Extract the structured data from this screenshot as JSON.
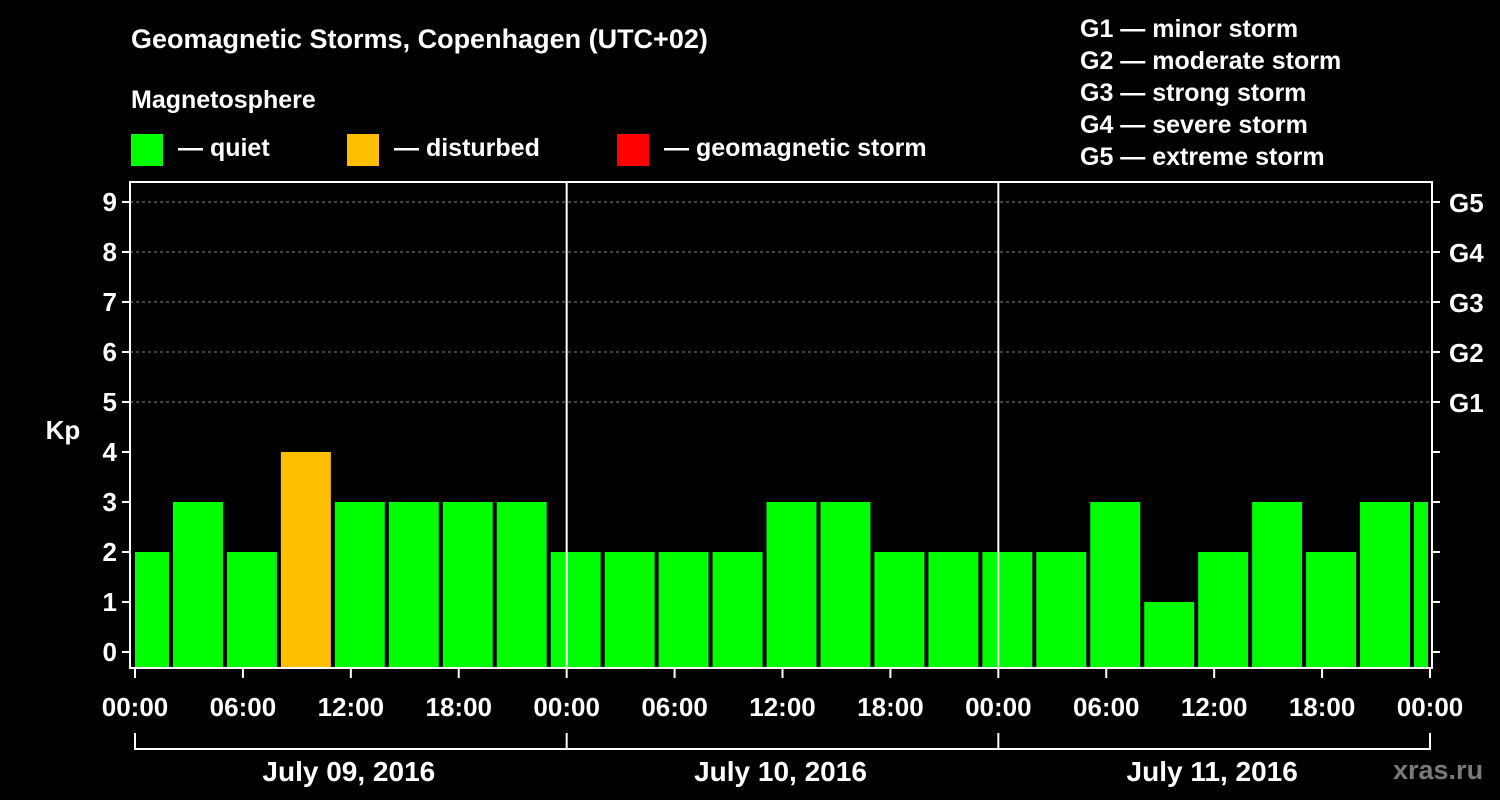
{
  "title": "Geomagnetic Storms, Copenhagen (UTC+02)",
  "magnetosphere_label": "Magnetosphere",
  "legend": [
    {
      "label": "— quiet",
      "color": "#00ff00"
    },
    {
      "label": "— disturbed",
      "color": "#ffbf00"
    },
    {
      "label": "— geomagnetic storm",
      "color": "#ff0000"
    }
  ],
  "storm_scale": [
    "G1 — minor storm",
    "G2 — moderate storm",
    "G3 — strong storm",
    "G4 — severe storm",
    "G5 — extreme storm"
  ],
  "watermark": "xras.ru",
  "colors": {
    "quiet": "#00ff00",
    "disturbed": "#ffbf00",
    "storm": "#ff0000",
    "background": "#000000",
    "axis": "#ffffff",
    "grid": "#888888"
  },
  "chart_data": {
    "type": "bar",
    "ylabel": "Kp",
    "ylim": [
      0,
      9
    ],
    "yticks": [
      "0",
      "1",
      "2",
      "3",
      "4",
      "5",
      "6",
      "7",
      "8",
      "9"
    ],
    "right_ticks": [
      {
        "value": 5,
        "label": "G1"
      },
      {
        "value": 6,
        "label": "G2"
      },
      {
        "value": 7,
        "label": "G3"
      },
      {
        "value": 8,
        "label": "G4"
      },
      {
        "value": 9,
        "label": "G5"
      }
    ],
    "grid_levels": [
      5,
      6,
      7,
      8,
      9
    ],
    "x_range_hours": [
      0,
      72
    ],
    "xtick_hours": [
      0,
      6,
      12,
      18,
      24,
      30,
      36,
      42,
      48,
      54,
      60,
      66,
      72
    ],
    "xtick_labels": [
      "00:00",
      "06:00",
      "12:00",
      "18:00",
      "00:00",
      "06:00",
      "12:00",
      "18:00",
      "00:00",
      "06:00",
      "12:00",
      "18:00",
      "00:00"
    ],
    "day_separators_hours": [
      24,
      48
    ],
    "days": [
      {
        "label": "July 09, 2016",
        "start_hour": 0,
        "end_hour": 24
      },
      {
        "label": "July 10, 2016",
        "start_hour": 24,
        "end_hour": 48
      },
      {
        "label": "July 11, 2016",
        "start_hour": 48,
        "end_hour": 72
      }
    ],
    "bars": [
      {
        "start_hour": 0,
        "end_hour": 2,
        "kp": 2,
        "level": "quiet"
      },
      {
        "start_hour": 2,
        "end_hour": 5,
        "kp": 3,
        "level": "quiet"
      },
      {
        "start_hour": 5,
        "end_hour": 8,
        "kp": 2,
        "level": "quiet"
      },
      {
        "start_hour": 8,
        "end_hour": 11,
        "kp": 4,
        "level": "disturbed"
      },
      {
        "start_hour": 11,
        "end_hour": 14,
        "kp": 3,
        "level": "quiet"
      },
      {
        "start_hour": 14,
        "end_hour": 17,
        "kp": 3,
        "level": "quiet"
      },
      {
        "start_hour": 17,
        "end_hour": 20,
        "kp": 3,
        "level": "quiet"
      },
      {
        "start_hour": 20,
        "end_hour": 23,
        "kp": 3,
        "level": "quiet"
      },
      {
        "start_hour": 23,
        "end_hour": 26,
        "kp": 2,
        "level": "quiet"
      },
      {
        "start_hour": 26,
        "end_hour": 29,
        "kp": 2,
        "level": "quiet"
      },
      {
        "start_hour": 29,
        "end_hour": 32,
        "kp": 2,
        "level": "quiet"
      },
      {
        "start_hour": 32,
        "end_hour": 35,
        "kp": 2,
        "level": "quiet"
      },
      {
        "start_hour": 35,
        "end_hour": 38,
        "kp": 3,
        "level": "quiet"
      },
      {
        "start_hour": 38,
        "end_hour": 41,
        "kp": 3,
        "level": "quiet"
      },
      {
        "start_hour": 41,
        "end_hour": 44,
        "kp": 2,
        "level": "quiet"
      },
      {
        "start_hour": 44,
        "end_hour": 47,
        "kp": 2,
        "level": "quiet"
      },
      {
        "start_hour": 47,
        "end_hour": 50,
        "kp": 2,
        "level": "quiet"
      },
      {
        "start_hour": 50,
        "end_hour": 53,
        "kp": 2,
        "level": "quiet"
      },
      {
        "start_hour": 53,
        "end_hour": 56,
        "kp": 3,
        "level": "quiet"
      },
      {
        "start_hour": 56,
        "end_hour": 59,
        "kp": 1,
        "level": "quiet"
      },
      {
        "start_hour": 59,
        "end_hour": 62,
        "kp": 2,
        "level": "quiet"
      },
      {
        "start_hour": 62,
        "end_hour": 65,
        "kp": 3,
        "level": "quiet"
      },
      {
        "start_hour": 65,
        "end_hour": 68,
        "kp": 2,
        "level": "quiet"
      },
      {
        "start_hour": 68,
        "end_hour": 71,
        "kp": 3,
        "level": "quiet"
      },
      {
        "start_hour": 71,
        "end_hour": 72,
        "kp": 3,
        "level": "quiet"
      }
    ]
  }
}
